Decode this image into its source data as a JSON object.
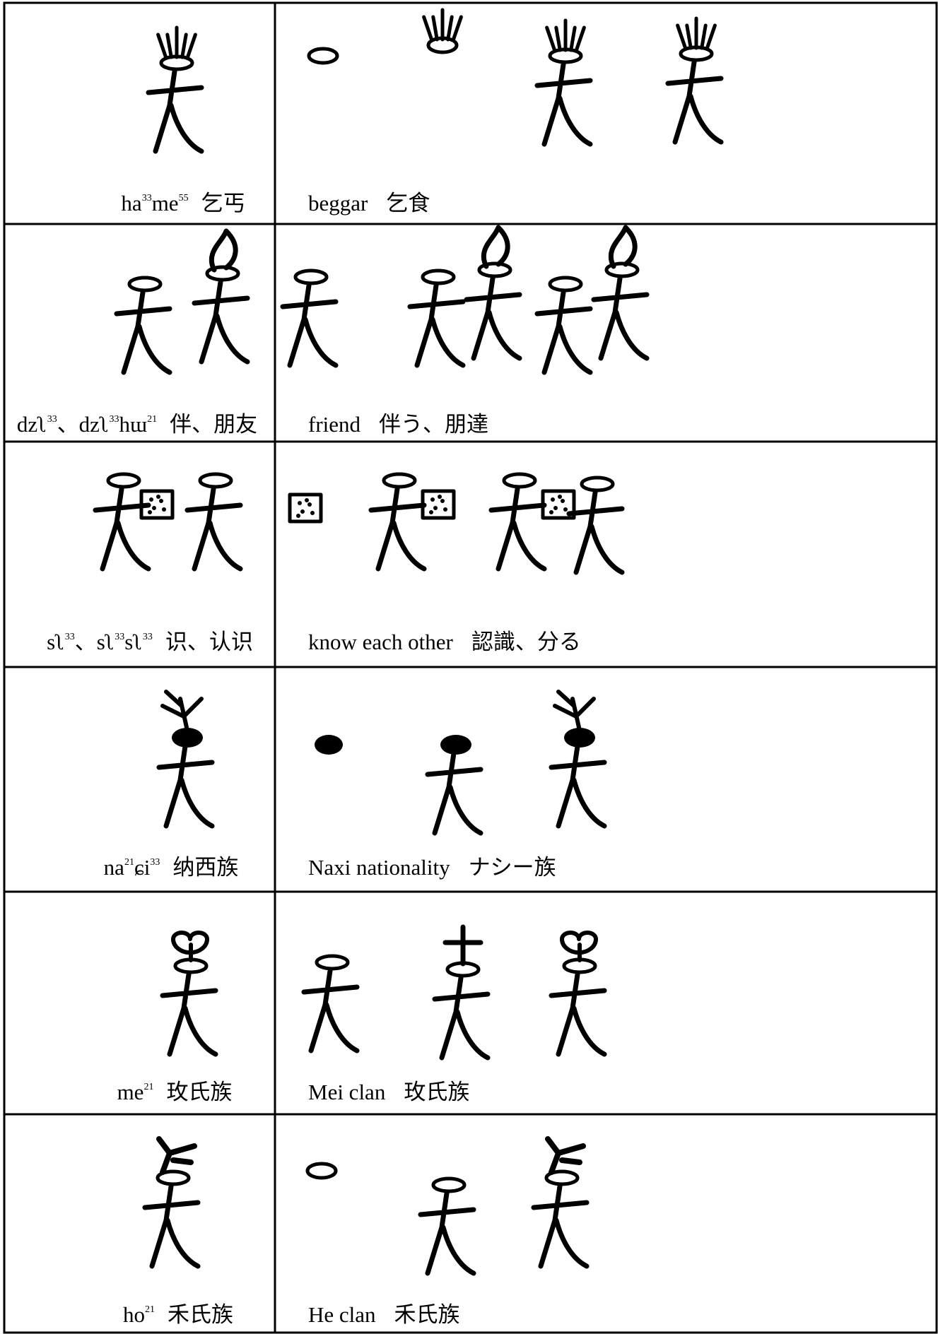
{
  "rows": [
    {
      "pron": [
        [
          "ha",
          "33"
        ],
        [
          "me",
          "55"
        ]
      ],
      "gloss_zh": "乞丐",
      "english": "beggar",
      "gloss_ja": "乞食"
    },
    {
      "pron": [
        [
          "dzʅ",
          "33"
        ],
        [
          "、dzʅ",
          "33"
        ],
        [
          "hɯ",
          "21"
        ]
      ],
      "gloss_zh": "伴、朋友",
      "english": "friend",
      "gloss_ja": "伴う、朋達"
    },
    {
      "pron": [
        [
          "sʅ",
          "33"
        ],
        [
          "、sʅ",
          "33"
        ],
        [
          "sʅ",
          "33"
        ]
      ],
      "gloss_zh": "识、认识",
      "english": "know each other",
      "gloss_ja": "認識、分る"
    },
    {
      "pron": [
        [
          "na",
          "21"
        ],
        [
          "ɕi",
          "33"
        ]
      ],
      "gloss_zh": "纳西族",
      "english": "Naxi nationality",
      "gloss_ja": "ナシー族"
    },
    {
      "pron": [
        [
          "me",
          "21"
        ]
      ],
      "gloss_zh": "玫氏族",
      "english": "Mei clan",
      "gloss_ja": "玫氏族"
    },
    {
      "pron": [
        [
          "ho",
          "21"
        ]
      ],
      "gloss_zh": "禾氏族",
      "english": "He clan",
      "gloss_ja": "禾氏族"
    }
  ]
}
